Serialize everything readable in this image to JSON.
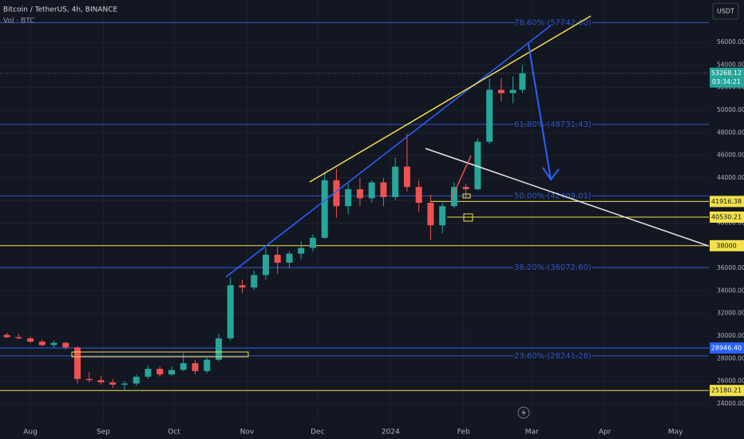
{
  "chart_data": {
    "type": "candlestick",
    "title": "Bitcoin / TetherUS, 4h, BINANCE",
    "subtitle": "Vol · BTC",
    "currency": "USDT",
    "grid": true,
    "up_color": "#26a69a",
    "down_color": "#ef5350",
    "xlim": [
      -12.9,
      288.2
    ],
    "xticks": [
      {
        "value": 0,
        "label": "Aug"
      },
      {
        "value": 31,
        "label": "Sep"
      },
      {
        "value": 61,
        "label": "Oct"
      },
      {
        "value": 92,
        "label": "Nov"
      },
      {
        "value": 122,
        "label": "Dec"
      },
      {
        "value": 153,
        "label": "2024"
      },
      {
        "value": 184,
        "label": "Feb"
      },
      {
        "value": 213,
        "label": "Mar"
      },
      {
        "value": 244,
        "label": "Apr"
      },
      {
        "value": 274,
        "label": "May"
      }
    ],
    "ylim": [
      22300,
      59750
    ],
    "yticks": [
      {
        "value": 24000,
        "label": "24000.00"
      },
      {
        "value": 26000,
        "label": "26000.00"
      },
      {
        "value": 28000,
        "label": "28000.00"
      },
      {
        "value": 30000,
        "label": "30000.00"
      },
      {
        "value": 32000,
        "label": "32000.00"
      },
      {
        "value": 34000,
        "label": "34000.00"
      },
      {
        "value": 36000,
        "label": "36000.00"
      },
      {
        "value": 38000,
        "label": "38000.00"
      },
      {
        "value": 40000,
        "label": "40000.00"
      },
      {
        "value": 42000,
        "label": "42000.00"
      },
      {
        "value": 44000,
        "label": "44000.00"
      },
      {
        "value": 46000,
        "label": "46000.00"
      },
      {
        "value": 48000,
        "label": "48000.00"
      },
      {
        "value": 50000,
        "label": "50000.00"
      },
      {
        "value": 52000,
        "label": "52000.00"
      },
      {
        "value": 54000,
        "label": "54000.00"
      },
      {
        "value": 56000,
        "label": "56000.00"
      }
    ],
    "candles": {
      "x": [
        -10,
        -5,
        0,
        5,
        10,
        15,
        20,
        25,
        30,
        35,
        40,
        45,
        50,
        55,
        60,
        65,
        70,
        75,
        80,
        85,
        90,
        95,
        100,
        105,
        110,
        115,
        120,
        125,
        130,
        135,
        140,
        145,
        150,
        155,
        160,
        165,
        170,
        175,
        180,
        185,
        190,
        195,
        200,
        205,
        209
      ],
      "open": [
        30100,
        29900,
        29800,
        29500,
        29200,
        29400,
        29000,
        26200,
        26100,
        25900,
        25700,
        25800,
        26400,
        27100,
        26600,
        27000,
        27600,
        26900,
        27900,
        29800,
        34500,
        34300,
        35400,
        37200,
        36500,
        37300,
        37800,
        38700,
        43800,
        41500,
        43000,
        42200,
        43600,
        42300,
        45000,
        43200,
        41800,
        39800,
        41500,
        43200,
        43000,
        47200,
        51800,
        51500,
        51800
      ],
      "high": [
        30300,
        30200,
        29950,
        29700,
        29600,
        29500,
        29100,
        26800,
        26500,
        26200,
        26000,
        26600,
        27400,
        27300,
        27300,
        28500,
        27900,
        28100,
        30200,
        35200,
        35000,
        35800,
        37800,
        37900,
        37500,
        38400,
        39000,
        44500,
        44800,
        43500,
        44000,
        43800,
        44000,
        45800,
        47900,
        43800,
        42500,
        41800,
        43600,
        43500,
        47500,
        52800,
        52800,
        53000,
        54000
      ],
      "low": [
        29800,
        29700,
        29400,
        29100,
        29000,
        28800,
        25800,
        25900,
        25700,
        25400,
        25200,
        25600,
        26200,
        26400,
        26500,
        26900,
        26600,
        26700,
        27800,
        29600,
        33800,
        34100,
        35000,
        35500,
        36000,
        36800,
        37500,
        38600,
        40500,
        40800,
        41500,
        41800,
        41500,
        42000,
        42800,
        41000,
        38500,
        39100,
        41300,
        42200,
        42900,
        47000,
        50800,
        50600,
        51500
      ],
      "close": [
        29900,
        29800,
        29500,
        29200,
        29400,
        29000,
        26200,
        26100,
        25900,
        25700,
        25800,
        26400,
        27100,
        26600,
        27000,
        27600,
        26900,
        27900,
        29800,
        34500,
        34300,
        35400,
        37200,
        36500,
        37300,
        37800,
        38700,
        43800,
        41500,
        43000,
        42200,
        43600,
        42300,
        45000,
        43200,
        41800,
        39800,
        41500,
        43200,
        43000,
        47200,
        51800,
        51500,
        51800,
        53268.12
      ]
    },
    "fib_levels": [
      {
        "value": 57742.8,
        "label": "78.60% (57742.80)"
      },
      {
        "value": 48731.43,
        "label": "61.80% (48731.43)"
      },
      {
        "value": 42409.01,
        "label": "50.00% (42409.01)"
      },
      {
        "value": 36072.6,
        "label": "38.20% (36072.60)"
      },
      {
        "value": 28241.28,
        "label": "23.60% (28241.28)"
      }
    ],
    "fib_color": "#3456c8",
    "lines": [
      {
        "value": 41916.38,
        "color": "#f2e14b",
        "start": 170
      },
      {
        "value": 40530.21,
        "color": "#f2e14b",
        "start": 177
      },
      {
        "value": 38000,
        "color": "#f2e14b",
        "start": -12.9
      },
      {
        "value": 28946.4,
        "label": "28946.40",
        "color": "#2962ff",
        "start": -12.9
      },
      {
        "value": 25180.21,
        "color": "#f2e14b",
        "start": -12.9
      }
    ],
    "last_price": {
      "value": 53268.12,
      "countdown": "03:34:21",
      "color": "#26a69a"
    }
  }
}
